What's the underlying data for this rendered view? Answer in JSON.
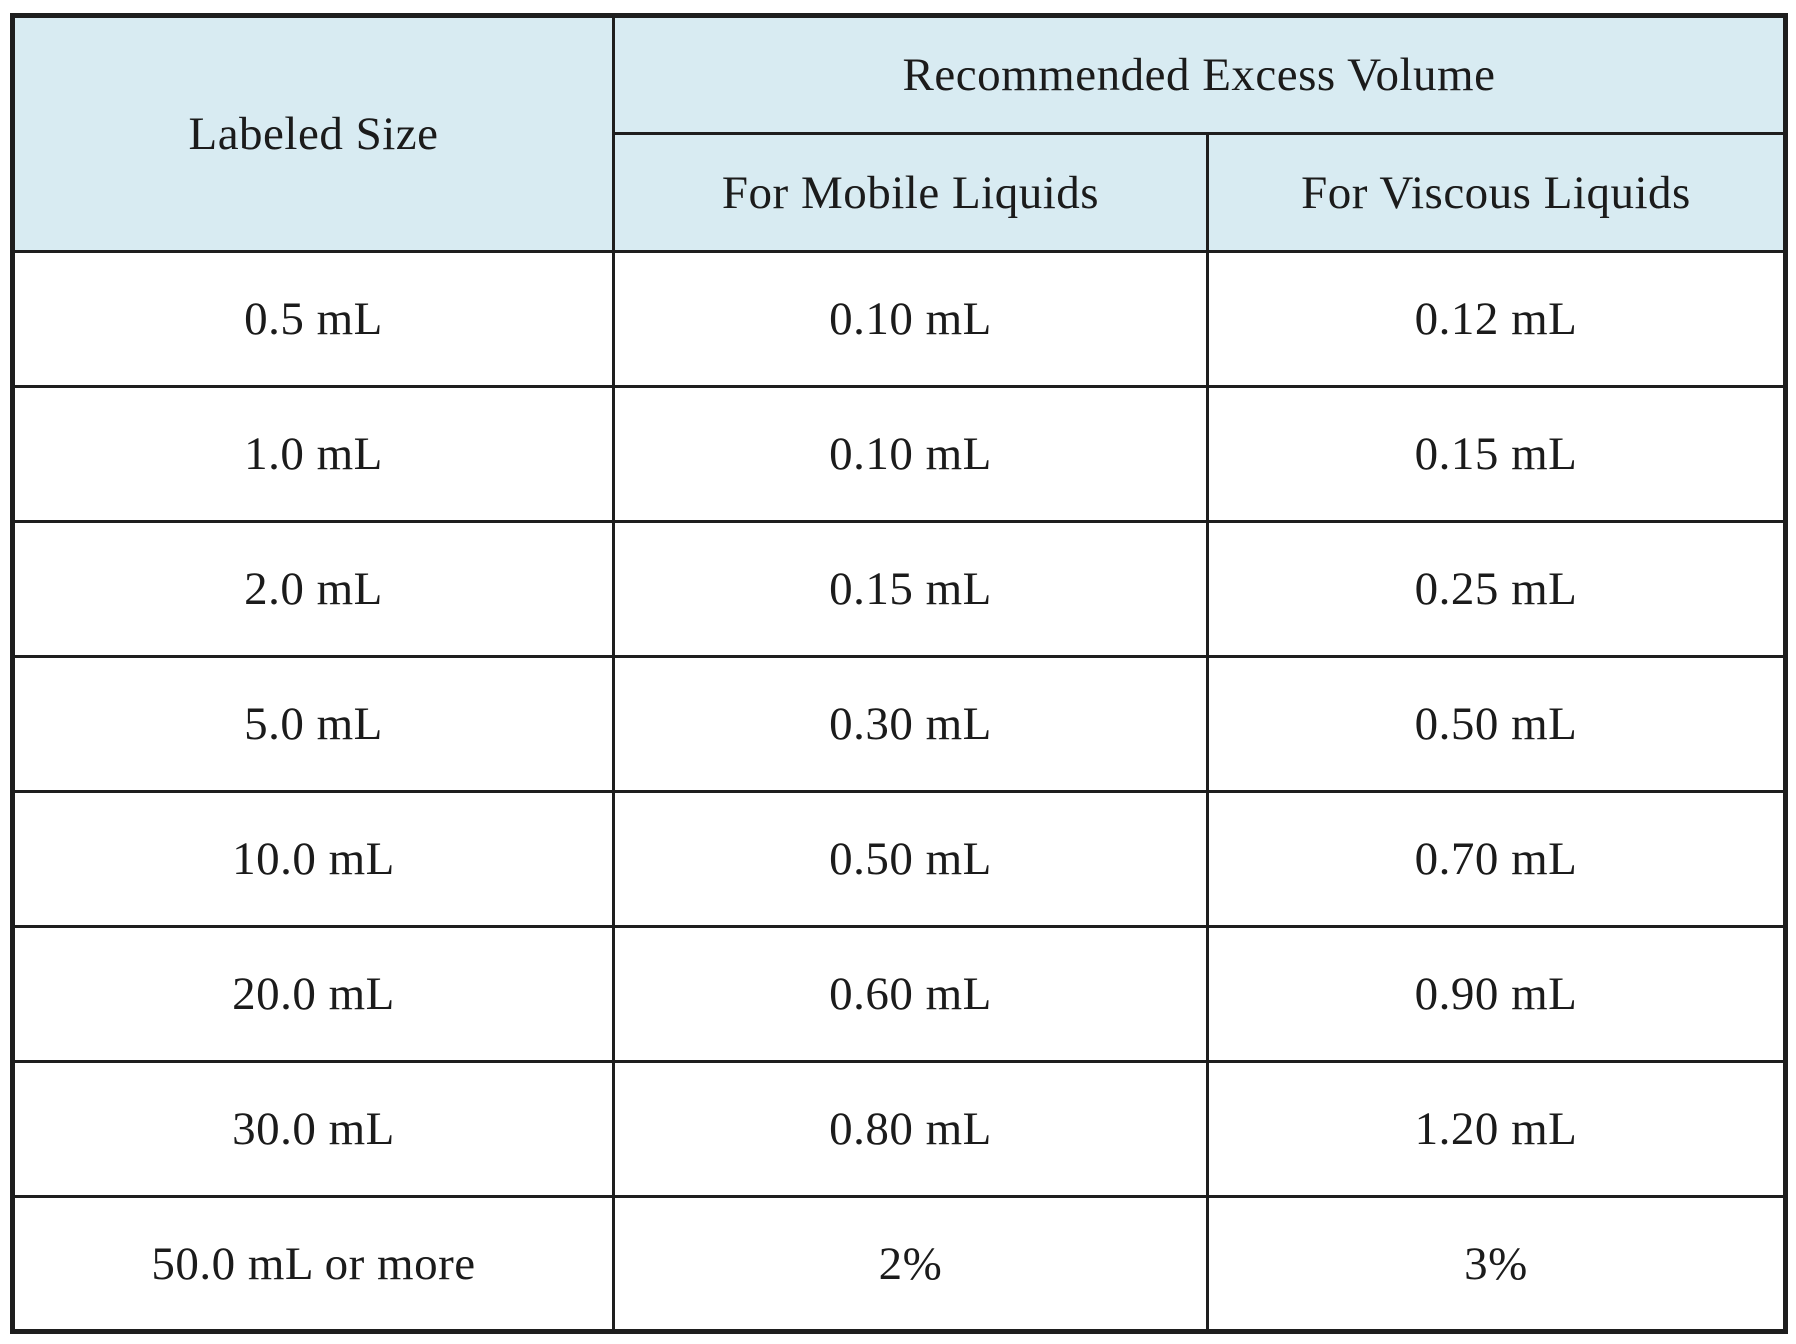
{
  "table": {
    "header": {
      "labeled_size": "Labeled Size",
      "group": "Recommended Excess Volume",
      "mobile": "For Mobile Liquids",
      "viscous": "For Viscous Liquids"
    },
    "rows": [
      [
        "0.5 mL",
        "0.10 mL",
        "0.12 mL"
      ],
      [
        "1.0 mL",
        "0.10 mL",
        "0.15 mL"
      ],
      [
        "2.0 mL",
        "0.15 mL",
        "0.25 mL"
      ],
      [
        "5.0 mL",
        "0.30 mL",
        "0.50 mL"
      ],
      [
        "10.0 mL",
        "0.50 mL",
        "0.70 mL"
      ],
      [
        "20.0 mL",
        "0.60 mL",
        "0.90 mL"
      ],
      [
        "30.0 mL",
        "0.80 mL",
        "1.20 mL"
      ],
      [
        "50.0 mL or more",
        "2%",
        "3%"
      ]
    ]
  },
  "colors": {
    "header_bg": "#d8ebf2",
    "border": "#1e1e1e",
    "text": "#1b1b1b",
    "page_bg": "#ffffff"
  }
}
